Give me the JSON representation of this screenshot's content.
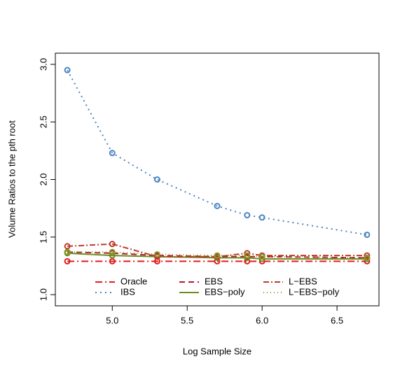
{
  "chart_data": {
    "type": "line",
    "x_label": "Log Sample Size",
    "y_label": "Volume Ratios to the pth root",
    "x": [
      4.7,
      5.0,
      5.3,
      5.7,
      5.9,
      6.0,
      6.7
    ],
    "series": [
      {
        "name": "Oracle",
        "color": "#e41a1c",
        "dash": "10,4,2,4",
        "values": [
          1.29,
          1.29,
          1.29,
          1.29,
          1.29,
          1.29,
          1.29
        ]
      },
      {
        "name": "IBS",
        "color": "#4a86c0",
        "dash": "2,5",
        "values": [
          2.95,
          2.23,
          2.0,
          1.77,
          1.69,
          1.67,
          1.52
        ]
      },
      {
        "name": "EBS",
        "color": "#b2182b",
        "dash": "8,5",
        "values": [
          1.37,
          1.36,
          1.34,
          1.33,
          1.33,
          1.33,
          1.32
        ]
      },
      {
        "name": "EBS−poly",
        "color": "#6b8e23",
        "dash": "none",
        "values": [
          1.36,
          1.34,
          1.33,
          1.32,
          1.32,
          1.31,
          1.31
        ]
      },
      {
        "name": "L−EBS",
        "color": "#c0392b",
        "dash": "8,3,2,3",
        "values": [
          1.42,
          1.44,
          1.33,
          1.33,
          1.36,
          1.34,
          1.34
        ]
      },
      {
        "name": "L−EBS−poly",
        "color": "#8a9a2b",
        "dash": "1,4",
        "values": [
          1.37,
          1.37,
          1.35,
          1.34,
          1.34,
          1.33,
          1.32
        ]
      }
    ],
    "xlim": [
      4.62,
      6.78
    ],
    "ylim": [
      0.903,
      3.097
    ],
    "xticks": [
      {
        "value": 5,
        "label": "5.0"
      },
      {
        "value": 5.5,
        "label": "5.5"
      },
      {
        "value": 6,
        "label": "6.0"
      },
      {
        "value": 6.5,
        "label": "6.5"
      }
    ],
    "yticks": [
      {
        "value": 1,
        "label": "1.0"
      },
      {
        "value": 1.5,
        "label": "1.5"
      },
      {
        "value": 2,
        "label": "2.0"
      },
      {
        "value": 2.5,
        "label": "2.5"
      },
      {
        "value": 3,
        "label": "3.0"
      }
    ],
    "legend": "bottom"
  }
}
